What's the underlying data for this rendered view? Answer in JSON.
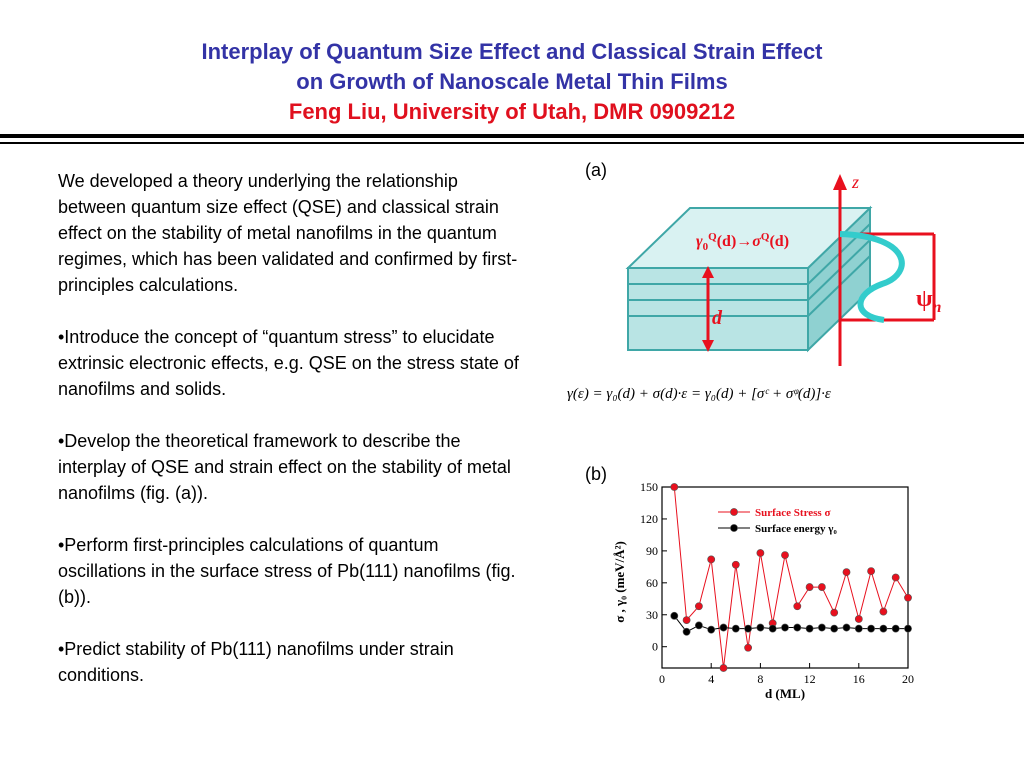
{
  "title": {
    "line1": "Interplay of Quantum Size Effect and Classical Strain Effect",
    "line2": "on Growth of Nanoscale Metal Thin Films",
    "line3": "Feng Liu, University of Utah, DMR 0909212"
  },
  "body": {
    "intro": "We developed a theory underlying the relationship between quantum size effect (QSE) and classical strain effect on the stability of metal nanofilms in the quantum regimes, which has been validated and confirmed by first-principles calculations.",
    "bullets": [
      "•Introduce the concept  of “quantum stress” to elucidate extrinsic electronic effects, e.g. QSE on the stress state of nanofilms and solids.",
      "•Develop the theoretical framework to describe the interplay of QSE and strain effect on the stability of metal nanofilms (fig. (a)).",
      "•Perform first-principles calculations of quantum oscillations in the surface stress of Pb(111) nanofilms  (fig.(b)).",
      "•Predict stability of Pb(111) nanofilms under strain conditions."
    ]
  },
  "figure_a": {
    "label": "(a)",
    "z_label": "z",
    "d_label": "d",
    "psi_label": "ψ",
    "psi_sub": "n",
    "arrow_label": {
      "gamma": "γ",
      "sub0": "0",
      "supQ1": "Q",
      "paren_d1": "(d)",
      "arrow": "→",
      "sigma": "σ",
      "supQ2": "Q",
      "paren_d2": "(d)"
    },
    "equation": "γ(ε) = γ₀(d) + σ(d)·ε = γ₀(d) + [σᶜ + σᵠ(d)]·ε"
  },
  "chart_data": {
    "type": "line",
    "label": "(b)",
    "xlabel": "d (ML)",
    "ylabel": "σ , γ₀ (meV/Å²)",
    "xlim": [
      0,
      20
    ],
    "ylim": [
      -20,
      150
    ],
    "xticks": [
      0,
      4,
      8,
      12,
      16,
      20
    ],
    "yticks": [
      0,
      30,
      60,
      90,
      120,
      150
    ],
    "legend_position": "top-right",
    "x": [
      1,
      2,
      3,
      4,
      5,
      6,
      7,
      8,
      9,
      10,
      11,
      12,
      13,
      14,
      15,
      16,
      17,
      18,
      19,
      20
    ],
    "series": [
      {
        "name": "Surface Stress σ",
        "color": "#e8101e",
        "values": [
          150,
          25,
          38,
          82,
          -20,
          77,
          -1,
          88,
          22,
          86,
          38,
          56,
          56,
          32,
          70,
          26,
          71,
          33,
          65,
          46
        ]
      },
      {
        "name": "Surface energy γ₀",
        "color": "#000000",
        "values": [
          29,
          14,
          20,
          16,
          18,
          17,
          17,
          18,
          17,
          18,
          18,
          17,
          18,
          17,
          18,
          17,
          17,
          17,
          17,
          17
        ]
      }
    ]
  }
}
